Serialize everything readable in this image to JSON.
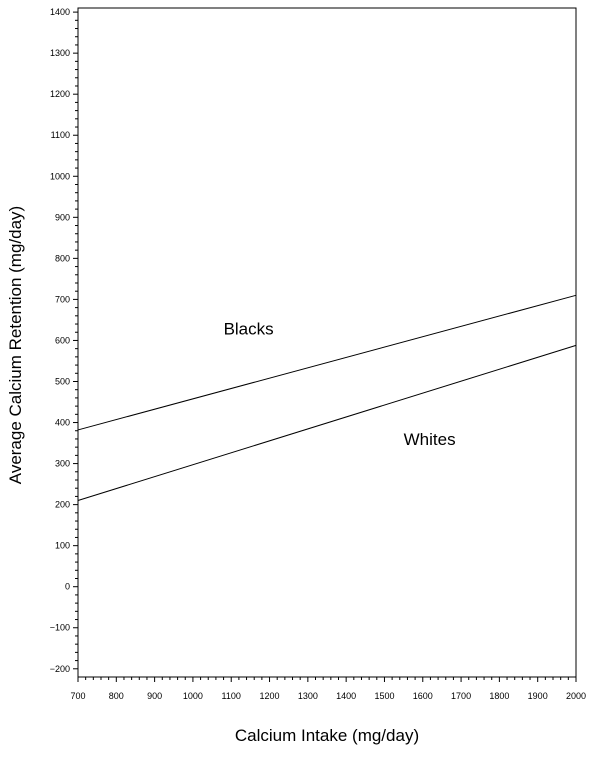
{
  "chart_data": {
    "type": "line",
    "title": "",
    "xlabel": "Calcium Intake (mg/day)",
    "ylabel": "Average Calcium Retention (mg/day)",
    "xlim": [
      700,
      2000
    ],
    "ylim": [
      -220,
      1410
    ],
    "x_ticks": [
      700,
      800,
      900,
      1000,
      1100,
      1200,
      1300,
      1400,
      1500,
      1600,
      1700,
      1800,
      1900,
      2000
    ],
    "x_tick_labels": [
      "700",
      "800",
      "900",
      "1000",
      "1100",
      "1200",
      "1300",
      "1400",
      "1500",
      "1600",
      "1700",
      "1800",
      "1900",
      "2000"
    ],
    "y_ticks": [
      -200,
      -100,
      0,
      100,
      200,
      300,
      400,
      500,
      600,
      700,
      800,
      900,
      1000,
      1100,
      1200,
      1300,
      1400
    ],
    "y_tick_labels": [
      "−200",
      "−100",
      "0",
      "100",
      "200",
      "300",
      "400",
      "500",
      "600",
      "700",
      "800",
      "900",
      "1000",
      "1100",
      "1200",
      "1300",
      "1400"
    ],
    "x_minor_step": 20,
    "y_minor_step": 20,
    "grid": false,
    "series": [
      {
        "name": "Blacks",
        "x": [
          700,
          2000
        ],
        "y": [
          382,
          710
        ],
        "label_at": [
          1080,
          615
        ]
      },
      {
        "name": "Whites",
        "x": [
          700,
          2000
        ],
        "y": [
          210,
          588
        ],
        "label_at": [
          1550,
          345
        ]
      }
    ],
    "line_color": "#000000"
  }
}
